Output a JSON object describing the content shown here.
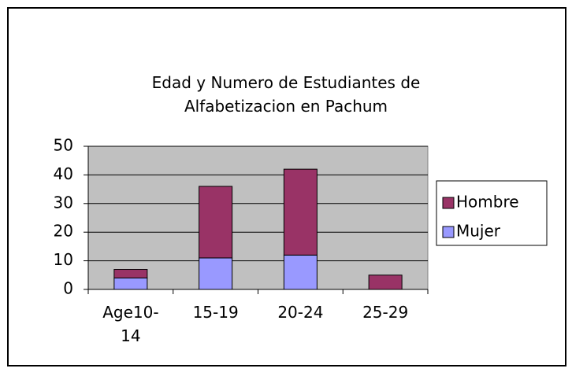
{
  "chart_data": {
    "type": "stacked_bar",
    "title": "Edad y Numero de Estudiantes de Alfabetizacion en Pachum",
    "categories": [
      "Age10-14",
      "15-19",
      "20-24",
      "25-29"
    ],
    "series": [
      {
        "name": "Mujer",
        "color": "#9999ff",
        "values": [
          4,
          11,
          12,
          0
        ]
      },
      {
        "name": "Hombre",
        "color": "#993366",
        "values": [
          3,
          25,
          30,
          5
        ]
      }
    ],
    "ylim": [
      0,
      50
    ],
    "yticks": [
      0,
      10,
      20,
      30,
      40,
      50
    ],
    "grid": true,
    "legend": "right"
  }
}
